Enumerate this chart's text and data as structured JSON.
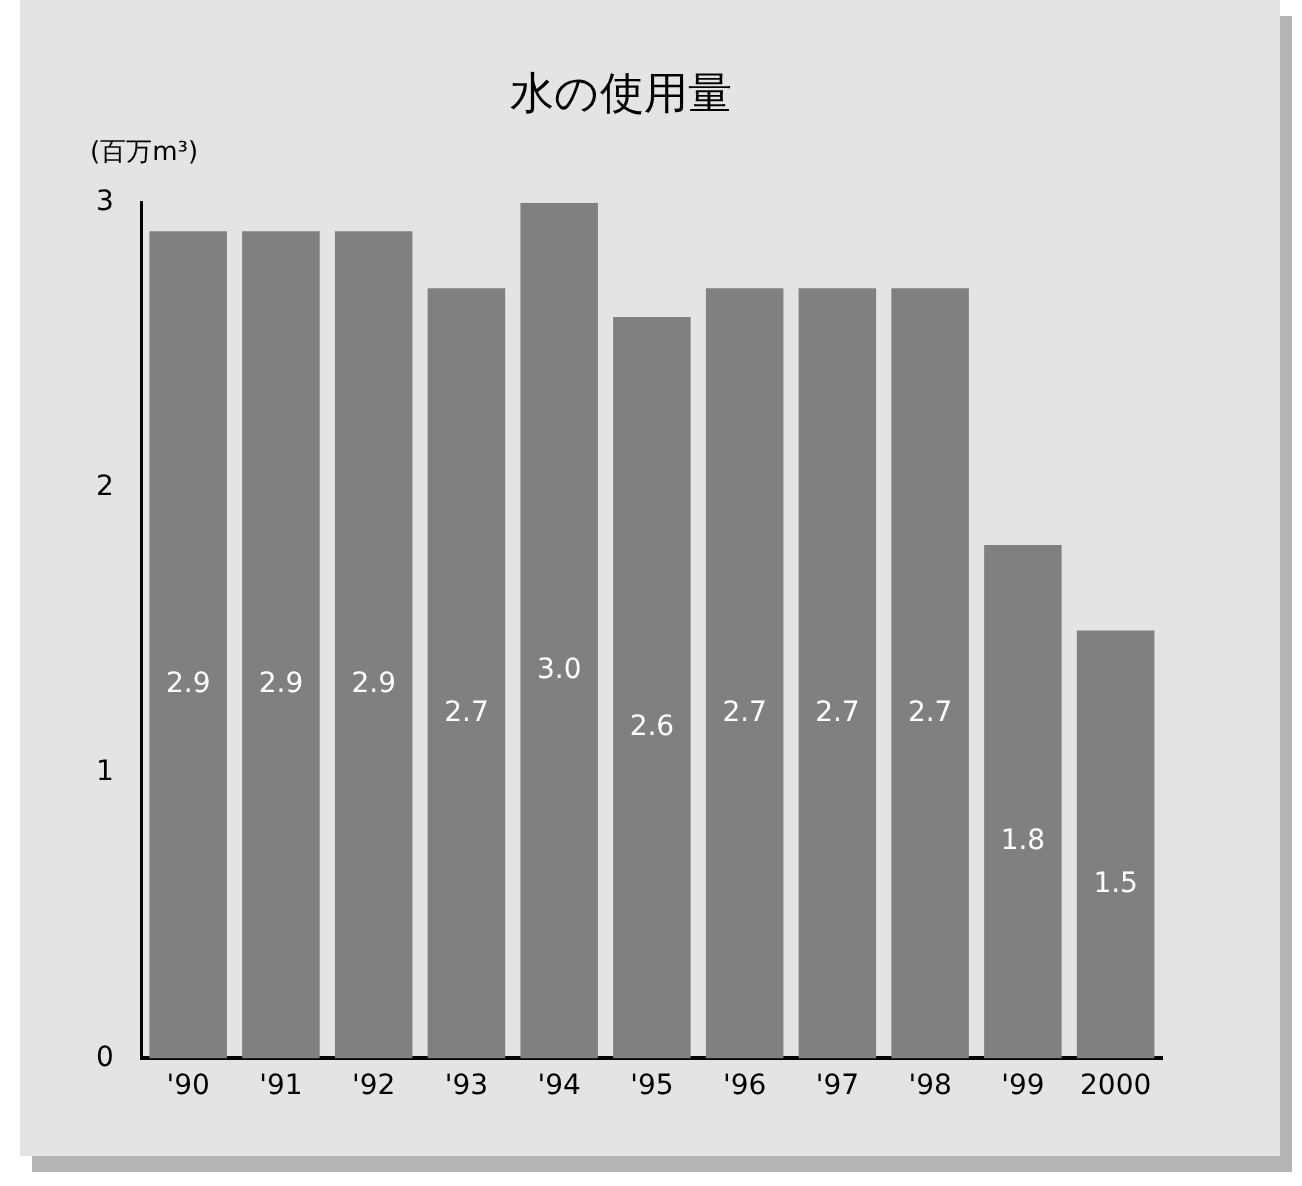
{
  "chart_data": {
    "type": "bar",
    "title": "水の使用量",
    "ylabel": "(百万m³)",
    "categories": [
      "'90",
      "'91",
      "'92",
      "'93",
      "'94",
      "'95",
      "'96",
      "'97",
      "'98",
      "'99",
      "2000"
    ],
    "values": [
      2.9,
      2.9,
      2.9,
      2.7,
      3.0,
      2.6,
      2.7,
      2.7,
      2.7,
      1.8,
      1.5
    ],
    "color": "#808080",
    "ylim": [
      0,
      3
    ],
    "yticks": [
      0,
      1,
      2,
      3
    ],
    "value_labels": [
      "2.9",
      "2.9",
      "2.9",
      "2.7",
      "3.0",
      "2.6",
      "2.7",
      "2.7",
      "2.7",
      "1.8",
      "1.5"
    ],
    "grid": false,
    "legend": false
  }
}
